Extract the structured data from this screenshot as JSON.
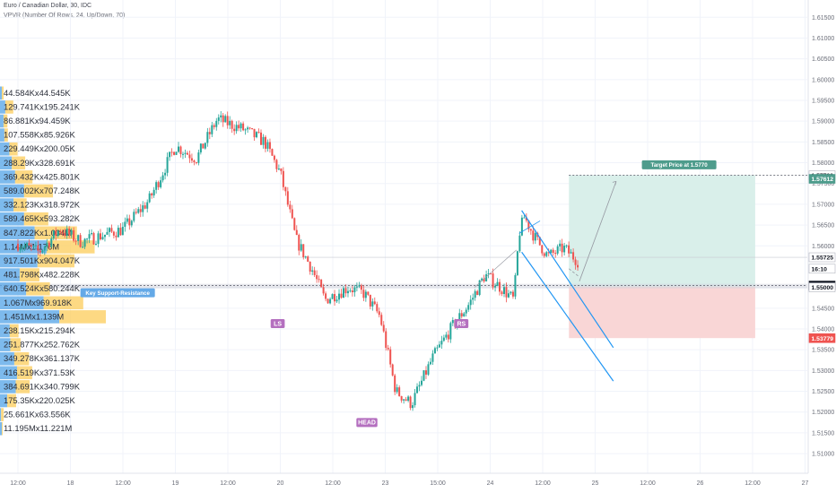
{
  "header": {
    "title": "Euro / Canadian Dollar, 30, IDC",
    "indicator": "VPVR (Number Of Rows, 24, Up/Down, 70)"
  },
  "colors": {
    "up": "#26a69a",
    "down": "#ef5350",
    "vp_up": "#5ca9e8",
    "vp_down": "#fdd064",
    "channel": "#2196f3",
    "target_zone": "#d9efea",
    "stop_zone": "#f9d6d6",
    "label_green": "#4e9c8c",
    "label_red": "#ef5350",
    "label_purple": "#b46fbf",
    "label_blue": "#64a9e7"
  },
  "chart_data": {
    "type": "candlestick",
    "symbol": "EURCAD",
    "timeframe": "30",
    "y_ticks": [
      "1.51000",
      "1.51500",
      "1.52000",
      "1.52500",
      "1.53000",
      "1.53500",
      "1.54000",
      "1.54500",
      "1.55000",
      "1.56000",
      "1.56500",
      "1.57000",
      "1.57500",
      "1.58000",
      "1.58500",
      "1.59000",
      "1.59500",
      "1.60000",
      "1.60500",
      "1.61000",
      "1.61500"
    ],
    "ylim": [
      1.507,
      1.617
    ],
    "x_ticks": [
      {
        "label": "12:00",
        "t": 0
      },
      {
        "label": "18",
        "t": 1
      },
      {
        "label": "12:00",
        "t": 2
      },
      {
        "label": "19",
        "t": 3
      },
      {
        "label": "12:00",
        "t": 4
      },
      {
        "label": "20",
        "t": 5
      },
      {
        "label": "12:00",
        "t": 6
      },
      {
        "label": "23",
        "t": 7
      },
      {
        "label": "15:00",
        "t": 8
      },
      {
        "label": "24",
        "t": 9
      },
      {
        "label": "12:00",
        "t": 10
      },
      {
        "label": "25",
        "t": 11
      },
      {
        "label": "12:00",
        "t": 12
      },
      {
        "label": "26",
        "t": 13
      },
      {
        "label": "12:00",
        "t": 14
      },
      {
        "label": "27",
        "t": 15
      }
    ],
    "price_tags": [
      {
        "text": "1.57700",
        "value": 1.577,
        "style": "outline"
      },
      {
        "text": "1.57612",
        "value": 1.57612,
        "style": "green"
      },
      {
        "text": "1.55725",
        "value": 1.55725,
        "style": "outline"
      },
      {
        "text": "16:10",
        "value": 1.5545,
        "style": "outline"
      },
      {
        "text": "1.55045",
        "value": 1.55045,
        "style": "dark"
      },
      {
        "text": "1.55000",
        "value": 1.55,
        "style": "outline"
      },
      {
        "text": "1.53779",
        "value": 1.53779,
        "style": "red"
      }
    ],
    "volume_profile": [
      {
        "label": "44.584Kx44.545K",
        "up": 44.584,
        "down": 44.545
      },
      {
        "label": "129.741Kx195.241K",
        "up": 129.741,
        "down": 195.241
      },
      {
        "label": "86.881Kx94.459K",
        "up": 86.881,
        "down": 94.459
      },
      {
        "label": "107.558Kx85.926K",
        "up": 107.558,
        "down": 85.926
      },
      {
        "label": "229.449Kx200.05K",
        "up": 229.449,
        "down": 200.05
      },
      {
        "label": "288.29Kx328.691K",
        "up": 288.29,
        "down": 328.691
      },
      {
        "label": "369.432Kx425.801K",
        "up": 369.432,
        "down": 425.801
      },
      {
        "label": "589.002Kx707.248K",
        "up": 589.002,
        "down": 707.248
      },
      {
        "label": "332.123Kx318.972K",
        "up": 332.123,
        "down": 318.972
      },
      {
        "label": "589.465Kx593.282K",
        "up": 589.465,
        "down": 593.282
      },
      {
        "label": "847.822Kx1.034M",
        "up": 847.822,
        "down": 1034
      },
      {
        "label": "1.14Mx1.176M",
        "up": 1140,
        "down": 1176
      },
      {
        "label": "917.501Kx904.047K",
        "up": 917.501,
        "down": 904.047
      },
      {
        "label": "481.798Kx482.228K",
        "up": 481.798,
        "down": 482.228
      },
      {
        "label": "640.524Kx580.244K",
        "up": 640.524,
        "down": 580.244
      },
      {
        "label": "1.067Mx969.918K",
        "up": 1067,
        "down": 969.918
      },
      {
        "label": "1.451Mx1.139M",
        "up": 1451,
        "down": 1139
      },
      {
        "label": "238.15Kx215.294K",
        "up": 238.15,
        "down": 215.294
      },
      {
        "label": "251.877Kx252.762K",
        "up": 251.877,
        "down": 252.762
      },
      {
        "label": "349.278Kx361.137K",
        "up": 349.278,
        "down": 361.137
      },
      {
        "label": "416.519Kx371.53K",
        "up": 416.519,
        "down": 371.53
      },
      {
        "label": "384.691Kx340.799K",
        "up": 384.691,
        "down": 340.799
      },
      {
        "label": "175.35Kx220.025K",
        "up": 175.35,
        "down": 220.025
      },
      {
        "label": "25.661Kx63.556K",
        "up": 25.661,
        "down": 63.556
      },
      {
        "label": "11.195Mx11.221M",
        "up": 11195,
        "down": 11221
      }
    ],
    "path_points": [
      [
        0,
        1.5605
      ],
      [
        0.4,
        1.5585
      ],
      [
        0.8,
        1.564
      ],
      [
        1.2,
        1.561
      ],
      [
        1.6,
        1.5625
      ],
      [
        2.0,
        1.564
      ],
      [
        2.5,
        1.571
      ],
      [
        3.0,
        1.584
      ],
      [
        3.4,
        1.581
      ],
      [
        3.8,
        1.5905
      ],
      [
        4.3,
        1.588
      ],
      [
        4.7,
        1.585
      ],
      [
        5.0,
        1.5775
      ],
      [
        5.3,
        1.5615
      ],
      [
        5.6,
        1.5545
      ],
      [
        5.85,
        1.547
      ],
      [
        6.3,
        1.55
      ],
      [
        6.6,
        1.5485
      ],
      [
        6.9,
        1.543
      ],
      [
        7.2,
        1.525
      ],
      [
        7.5,
        1.522
      ],
      [
        7.9,
        1.533
      ],
      [
        8.3,
        1.541
      ],
      [
        8.6,
        1.546
      ],
      [
        8.9,
        1.553
      ],
      [
        9.2,
        1.55
      ],
      [
        9.45,
        1.547
      ],
      [
        9.55,
        1.563
      ],
      [
        9.65,
        1.567
      ],
      [
        9.85,
        1.562
      ],
      [
        10.1,
        1.5575
      ],
      [
        10.4,
        1.5595
      ],
      [
        10.7,
        1.556
      ]
    ],
    "annotations": [
      {
        "text": "Key Support-Resistance",
        "value": 1.5487,
        "t": 1.9,
        "color": "label_blue"
      },
      {
        "text": "LS",
        "value": 1.5413,
        "t": 4.95,
        "color": "label_purple"
      },
      {
        "text": "HEAD",
        "value": 1.5175,
        "t": 6.65,
        "color": "label_purple"
      },
      {
        "text": "RS",
        "value": 1.5413,
        "t": 8.45,
        "color": "label_purple"
      },
      {
        "text": "Target Price at 1.5770",
        "value": 1.5795,
        "t": 12.6,
        "color": "label_green"
      }
    ],
    "support_level": 1.5502,
    "target_level": 1.577,
    "stop_level": 1.5378,
    "position": {
      "t_start": 10.5,
      "t_end": 14.05
    },
    "channel": {
      "upper": [
        [
          9.6,
          1.5685
        ],
        [
          10.5,
          1.5515
        ]
      ],
      "lower": [
        [
          9.6,
          1.5585
        ],
        [
          10.5,
          1.5425
        ]
      ],
      "t_start_factor": 9.6
    },
    "grid": true
  }
}
